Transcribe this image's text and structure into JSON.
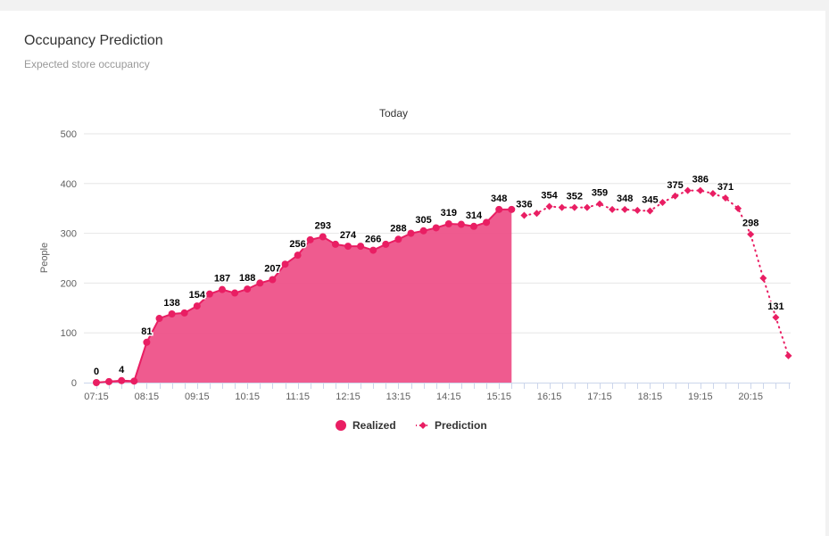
{
  "header": {
    "title": "Occupancy Prediction",
    "subtitle": "Expected store occupancy"
  },
  "chart_data": {
    "type": "area",
    "title": "Today",
    "xlabel": "",
    "ylabel": "People",
    "ylim": [
      0,
      500
    ],
    "yticks": [
      0,
      100,
      200,
      300,
      400,
      500
    ],
    "xtick_labels": [
      "07:15",
      "08:15",
      "09:15",
      "10:15",
      "11:15",
      "12:15",
      "13:15",
      "14:15",
      "15:15",
      "16:15",
      "17:15",
      "18:15",
      "19:15",
      "20:15"
    ],
    "x_start": "07:15",
    "interval_minutes": 15,
    "colors": {
      "realized": "#e91e63",
      "prediction": "#e91e63",
      "area": "#ee5289",
      "grid": "#e6e6e6"
    },
    "series": [
      {
        "name": "Realized",
        "style": "area",
        "start_index": 0,
        "values": [
          0,
          2,
          4,
          3,
          81,
          129,
          138,
          140,
          154,
          178,
          187,
          180,
          188,
          200,
          207,
          238,
          256,
          287,
          293,
          278,
          274,
          274,
          266,
          278,
          288,
          300,
          305,
          311,
          319,
          318,
          314,
          322,
          348,
          348
        ],
        "labels": [
          "0",
          "",
          "4",
          "",
          "81",
          "",
          "138",
          "",
          "154",
          "",
          "187",
          "",
          "188",
          "",
          "207",
          "",
          "256",
          "",
          "293",
          "",
          "274",
          "",
          "266",
          "",
          "288",
          "",
          "305",
          "",
          "319",
          "",
          "314",
          "",
          "348",
          ""
        ]
      },
      {
        "name": "Prediction",
        "style": "dotted-line",
        "start_index": 34,
        "values": [
          336,
          340,
          354,
          352,
          352,
          352,
          359,
          348,
          348,
          346,
          345,
          362,
          375,
          386,
          386,
          380,
          371,
          350,
          298,
          210,
          131,
          54
        ],
        "labels": [
          "336",
          "",
          "354",
          "",
          "352",
          "",
          "359",
          "",
          "348",
          "",
          "345",
          "",
          "375",
          "",
          "386",
          "",
          "371",
          "",
          "298",
          "",
          "131",
          ""
        ]
      }
    ],
    "legend": [
      "Realized",
      "Prediction"
    ],
    "legend_position": "bottom-center"
  }
}
